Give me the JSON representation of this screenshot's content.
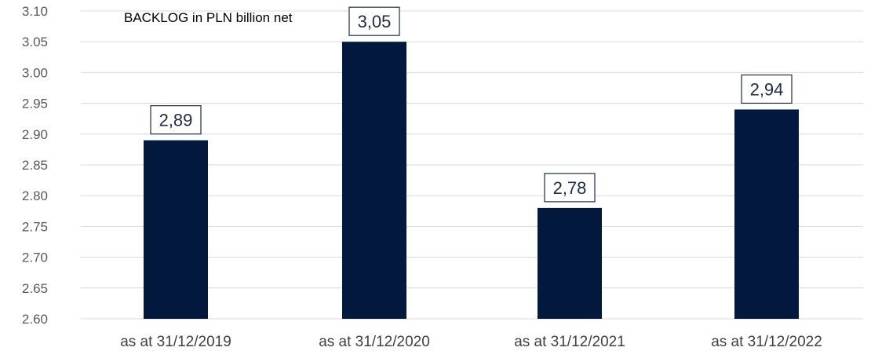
{
  "chart_data": {
    "type": "bar",
    "title": "BACKLOG in PLN billion net",
    "categories": [
      "as at 31/12/2019",
      "as at 31/12/2020",
      "as at 31/12/2021",
      "as at 31/12/2022"
    ],
    "values": [
      2.89,
      3.05,
      2.78,
      2.94
    ],
    "data_labels": [
      "2,89",
      "3,05",
      "2,78",
      "2,94"
    ],
    "y_ticks": [
      "2.60",
      "2.65",
      "2.70",
      "2.75",
      "2.80",
      "2.85",
      "2.90",
      "2.95",
      "3.00",
      "3.05",
      "3.10"
    ],
    "ylim": [
      2.6,
      3.1
    ],
    "grid": true,
    "bar_color": "#03183d",
    "xlabel": "",
    "ylabel": ""
  }
}
